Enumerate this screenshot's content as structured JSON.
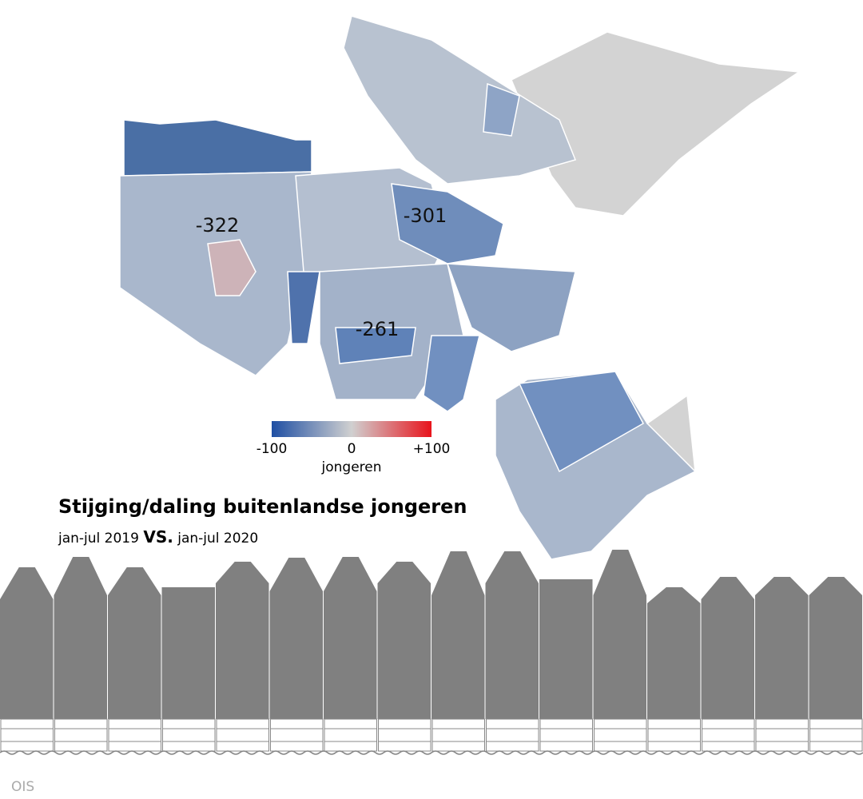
{
  "map_labels": [
    "-322",
    "-301",
    "-261"
  ],
  "legend": {
    "min_label": "-100",
    "mid_label": "0",
    "max_label": "+100",
    "unit": "jongeren"
  },
  "title": "Stijging/daling buitenlandse jongeren",
  "subtitle": {
    "from": "jan-jul 2019",
    "versus": "VS.",
    "to": "jan-jul 2020"
  },
  "source": "OIS"
}
